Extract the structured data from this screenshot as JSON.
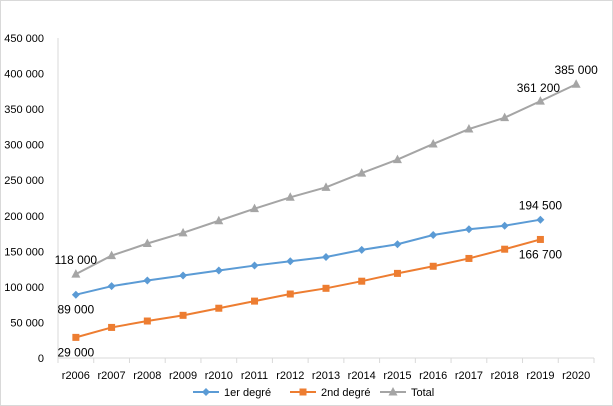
{
  "chart_data": {
    "type": "line",
    "title": "",
    "xlabel": "",
    "ylabel": "",
    "categories": [
      "r2006",
      "r2007",
      "r2008",
      "r2009",
      "r2010",
      "r2011",
      "r2012",
      "r2013",
      "r2014",
      "r2015",
      "r2016",
      "r2017",
      "r2018",
      "r2019",
      "r2020"
    ],
    "ylim": [
      0,
      450000
    ],
    "yticks": [
      0,
      50000,
      100000,
      150000,
      200000,
      250000,
      300000,
      350000,
      400000,
      450000
    ],
    "ytick_labels": [
      "0",
      "50 000",
      "100 000",
      "150 000",
      "200 000",
      "250 000",
      "300 000",
      "350 000",
      "400 000",
      "450 000"
    ],
    "grid": false,
    "legend_position": "bottom",
    "series": [
      {
        "name": "1er degré",
        "color": "#5b9bd5",
        "marker": "diamond",
        "values": [
          89000,
          101000,
          109000,
          116000,
          123000,
          130000,
          136000,
          142000,
          152000,
          160000,
          173000,
          181000,
          186000,
          194500,
          null
        ]
      },
      {
        "name": "2nd degré",
        "color": "#ed7d31",
        "marker": "square",
        "values": [
          29000,
          43000,
          52000,
          60000,
          70000,
          80000,
          90000,
          98000,
          108000,
          119000,
          129000,
          140000,
          153000,
          166700,
          null
        ]
      },
      {
        "name": "Total",
        "color": "#a5a5a5",
        "marker": "triangle",
        "values": [
          118000,
          144000,
          161000,
          176000,
          193000,
          210000,
          226000,
          240000,
          260000,
          279000,
          301000,
          322000,
          338000,
          361200,
          385000
        ]
      }
    ],
    "data_labels": [
      {
        "series": 2,
        "index": 0,
        "text": "118 000",
        "pos": "above"
      },
      {
        "series": 0,
        "index": 0,
        "text": "89 000",
        "pos": "below"
      },
      {
        "series": 1,
        "index": 0,
        "text": "29 000",
        "pos": "below"
      },
      {
        "series": 0,
        "index": 13,
        "text": "194 500",
        "pos": "above"
      },
      {
        "series": 1,
        "index": 13,
        "text": "166 700",
        "pos": "below"
      },
      {
        "series": 2,
        "index": 13,
        "text": "361 200",
        "pos": "above-left"
      },
      {
        "series": 2,
        "index": 14,
        "text": "385 000",
        "pos": "above"
      }
    ]
  }
}
